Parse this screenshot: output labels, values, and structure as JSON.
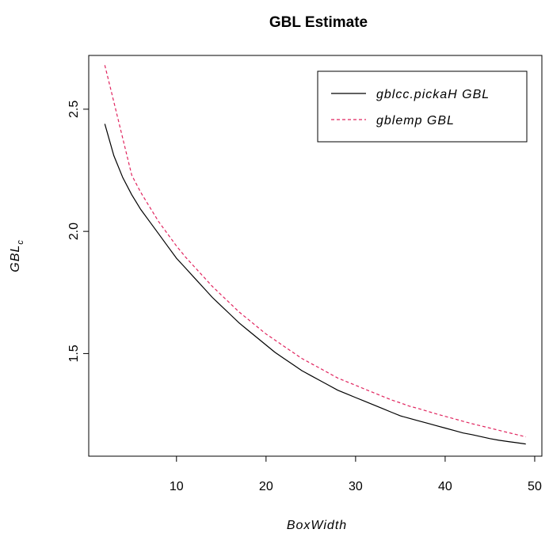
{
  "chart_data": {
    "type": "line",
    "title": "GBL Estimate",
    "xlabel": "BoxWidth",
    "ylabel_main": "GBL",
    "ylabel_sub": "c",
    "xlim": [
      0.2,
      50.8
    ],
    "ylim": [
      1.08,
      2.72
    ],
    "xticks": [
      10,
      20,
      30,
      40,
      50
    ],
    "yticks": [
      1.5,
      2.0,
      2.5
    ],
    "legend_position": "top-right",
    "series": [
      {
        "name": "gblcc.pickaH GBL",
        "color": "#000000",
        "dash": "solid",
        "x": [
          2,
          3,
          4,
          5,
          6,
          7,
          8,
          9,
          10,
          11,
          12,
          13,
          14,
          15,
          16,
          17,
          18,
          19,
          20,
          21,
          22,
          23,
          24,
          25,
          26,
          27,
          28,
          29,
          30,
          31,
          32,
          33,
          34,
          35,
          36,
          37,
          38,
          39,
          40,
          41,
          42,
          43,
          44,
          45,
          46,
          47,
          48,
          49
        ],
        "y": [
          2.44,
          2.31,
          2.22,
          2.15,
          2.09,
          2.04,
          1.99,
          1.94,
          1.89,
          1.85,
          1.81,
          1.77,
          1.73,
          1.695,
          1.66,
          1.625,
          1.595,
          1.565,
          1.535,
          1.505,
          1.48,
          1.455,
          1.43,
          1.41,
          1.39,
          1.37,
          1.35,
          1.335,
          1.32,
          1.305,
          1.29,
          1.275,
          1.26,
          1.245,
          1.235,
          1.225,
          1.215,
          1.205,
          1.195,
          1.185,
          1.175,
          1.168,
          1.16,
          1.152,
          1.145,
          1.14,
          1.135,
          1.13
        ]
      },
      {
        "name": "gblemp GBL",
        "color": "#e0245e",
        "dash": "dashed",
        "x": [
          2,
          3,
          4,
          5,
          6,
          7,
          8,
          9,
          10,
          11,
          12,
          13,
          14,
          15,
          16,
          17,
          18,
          19,
          20,
          21,
          22,
          23,
          24,
          25,
          26,
          27,
          28,
          29,
          30,
          31,
          32,
          33,
          34,
          35,
          36,
          37,
          38,
          39,
          40,
          41,
          42,
          43,
          44,
          45,
          46,
          47,
          48,
          49
        ],
        "y": [
          2.68,
          2.53,
          2.38,
          2.23,
          2.16,
          2.1,
          2.04,
          1.99,
          1.94,
          1.895,
          1.855,
          1.815,
          1.775,
          1.74,
          1.705,
          1.67,
          1.64,
          1.61,
          1.58,
          1.555,
          1.53,
          1.505,
          1.48,
          1.46,
          1.44,
          1.42,
          1.4,
          1.385,
          1.37,
          1.355,
          1.34,
          1.325,
          1.31,
          1.298,
          1.285,
          1.275,
          1.264,
          1.253,
          1.243,
          1.233,
          1.223,
          1.213,
          1.204,
          1.195,
          1.186,
          1.177,
          1.168,
          1.159
        ]
      }
    ]
  }
}
